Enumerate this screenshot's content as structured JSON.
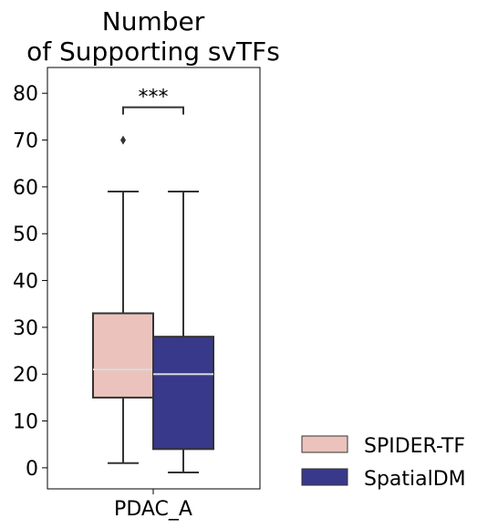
{
  "chart_data": {
    "type": "box",
    "title_lines": [
      "Number",
      "of Supporting svTFs"
    ],
    "xlabel": "",
    "ylabel": "",
    "categories": [
      "PDAC_A"
    ],
    "ylim": [
      -4.5,
      85.5
    ],
    "yticks": [
      0,
      10,
      20,
      30,
      40,
      50,
      60,
      70,
      80
    ],
    "grid": false,
    "legend_position": "bottom-right-outside",
    "series": [
      {
        "name": "SPIDER-TF",
        "color": "#ebc3bc",
        "median_color": "#d9d9d9",
        "q1": 15,
        "median": 21,
        "q3": 33,
        "whisker_low": 1,
        "whisker_high": 59,
        "outliers": [
          70
        ]
      },
      {
        "name": "SpatialDM",
        "color": "#38398a",
        "median_color": "#d9d9d9",
        "q1": 4,
        "median": 20,
        "q3": 28,
        "whisker_low": -1,
        "whisker_high": 59,
        "outliers": []
      }
    ],
    "annotation": {
      "text": "***",
      "y": 77
    }
  }
}
